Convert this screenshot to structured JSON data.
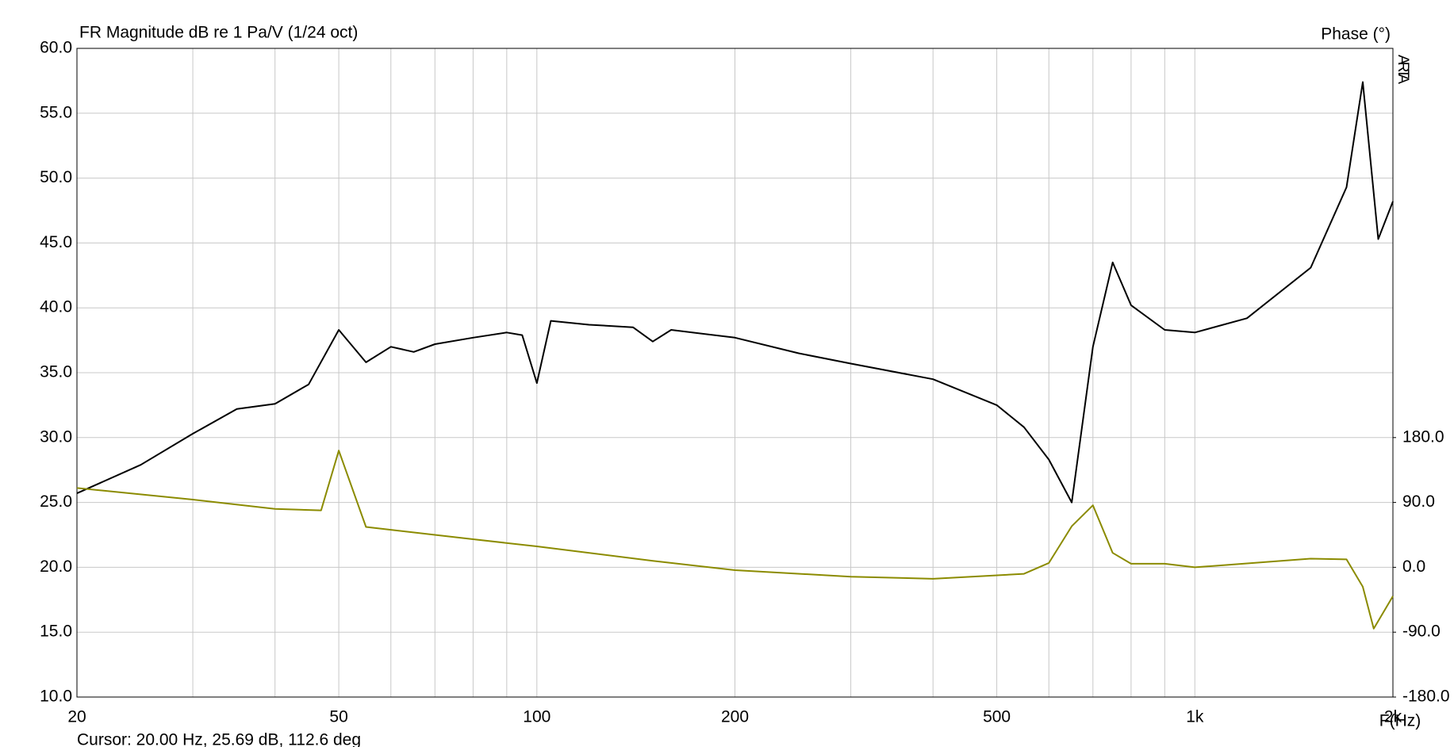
{
  "chart_data": {
    "type": "line",
    "title": "FR Magnitude dB re 1 Pa/V (1/24 oct)",
    "y2_label": "Phase (°)",
    "x_label": "F(Hz)",
    "watermark": "ARTA",
    "cursor": "Cursor: 20.00 Hz, 25.69 dB, 112.6 deg",
    "xscale": "log",
    "grid": true,
    "xlim": [
      20,
      2000
    ],
    "xticks": [
      20,
      50,
      100,
      200,
      500,
      {
        "value": 1000,
        "label": "1k"
      },
      {
        "value": 2000,
        "label": "2k"
      }
    ],
    "xminorticks": [
      30,
      40,
      60,
      70,
      80,
      90,
      300,
      400,
      600,
      700,
      800,
      900
    ],
    "ylim": [
      10,
      60
    ],
    "yticks": [
      {
        "value": 10,
        "label": "10.0"
      },
      {
        "value": 15,
        "label": "15.0"
      },
      {
        "value": 20,
        "label": "20.0"
      },
      {
        "value": 25,
        "label": "25.0"
      },
      {
        "value": 30,
        "label": "30.0"
      },
      {
        "value": 35,
        "label": "35.0"
      },
      {
        "value": 40,
        "label": "40.0"
      },
      {
        "value": 45,
        "label": "45.0"
      },
      {
        "value": 50,
        "label": "50.0"
      },
      {
        "value": 55,
        "label": "55.0"
      },
      {
        "value": 60,
        "label": "60.0"
      }
    ],
    "y2lim": [
      -180,
      720
    ],
    "y2ticks": [
      {
        "value": -180,
        "label": "-180.0"
      },
      {
        "value": -90,
        "label": "-90.0"
      },
      {
        "value": 0,
        "label": "0.0"
      },
      {
        "value": 90,
        "label": "90.0"
      },
      {
        "value": 180,
        "label": "180.0"
      }
    ],
    "series": [
      {
        "color": "#000000",
        "x": [
          20,
          25,
          30,
          35,
          40,
          45,
          50,
          55,
          60,
          65,
          70,
          80,
          90,
          95,
          100,
          105,
          120,
          140,
          150,
          160,
          200,
          250,
          300,
          400,
          500,
          550,
          600,
          650,
          700,
          750,
          800,
          900,
          1000,
          1200,
          1500,
          1700,
          1800,
          1900,
          2000
        ],
        "values": [
          25.7,
          27.9,
          30.3,
          32.2,
          32.6,
          34.1,
          38.3,
          35.8,
          37.0,
          36.6,
          37.2,
          37.7,
          38.1,
          37.9,
          34.2,
          39.0,
          38.7,
          38.5,
          37.4,
          38.3,
          37.7,
          36.5,
          35.7,
          34.5,
          32.5,
          30.8,
          28.3,
          25.0,
          37.0,
          43.5,
          40.2,
          38.3,
          38.1,
          39.2,
          43.1,
          49.3,
          57.4,
          45.3,
          48.2
        ]
      },
      {
        "color": "#8b8b00",
        "axis": "y2",
        "x": [
          20,
          30,
          40,
          47,
          50,
          55,
          60,
          70,
          80,
          100,
          150,
          200,
          300,
          400,
          550,
          600,
          650,
          700,
          750,
          800,
          900,
          1000,
          1500,
          1700,
          1800,
          1870,
          2000
        ],
        "values": [
          110,
          94,
          81,
          79,
          162,
          56,
          52,
          45,
          39,
          29,
          9,
          -4,
          -13,
          -16,
          -9,
          6,
          57,
          86,
          20,
          5,
          5,
          0,
          12,
          11,
          -27,
          -85,
          -40
        ]
      }
    ]
  }
}
